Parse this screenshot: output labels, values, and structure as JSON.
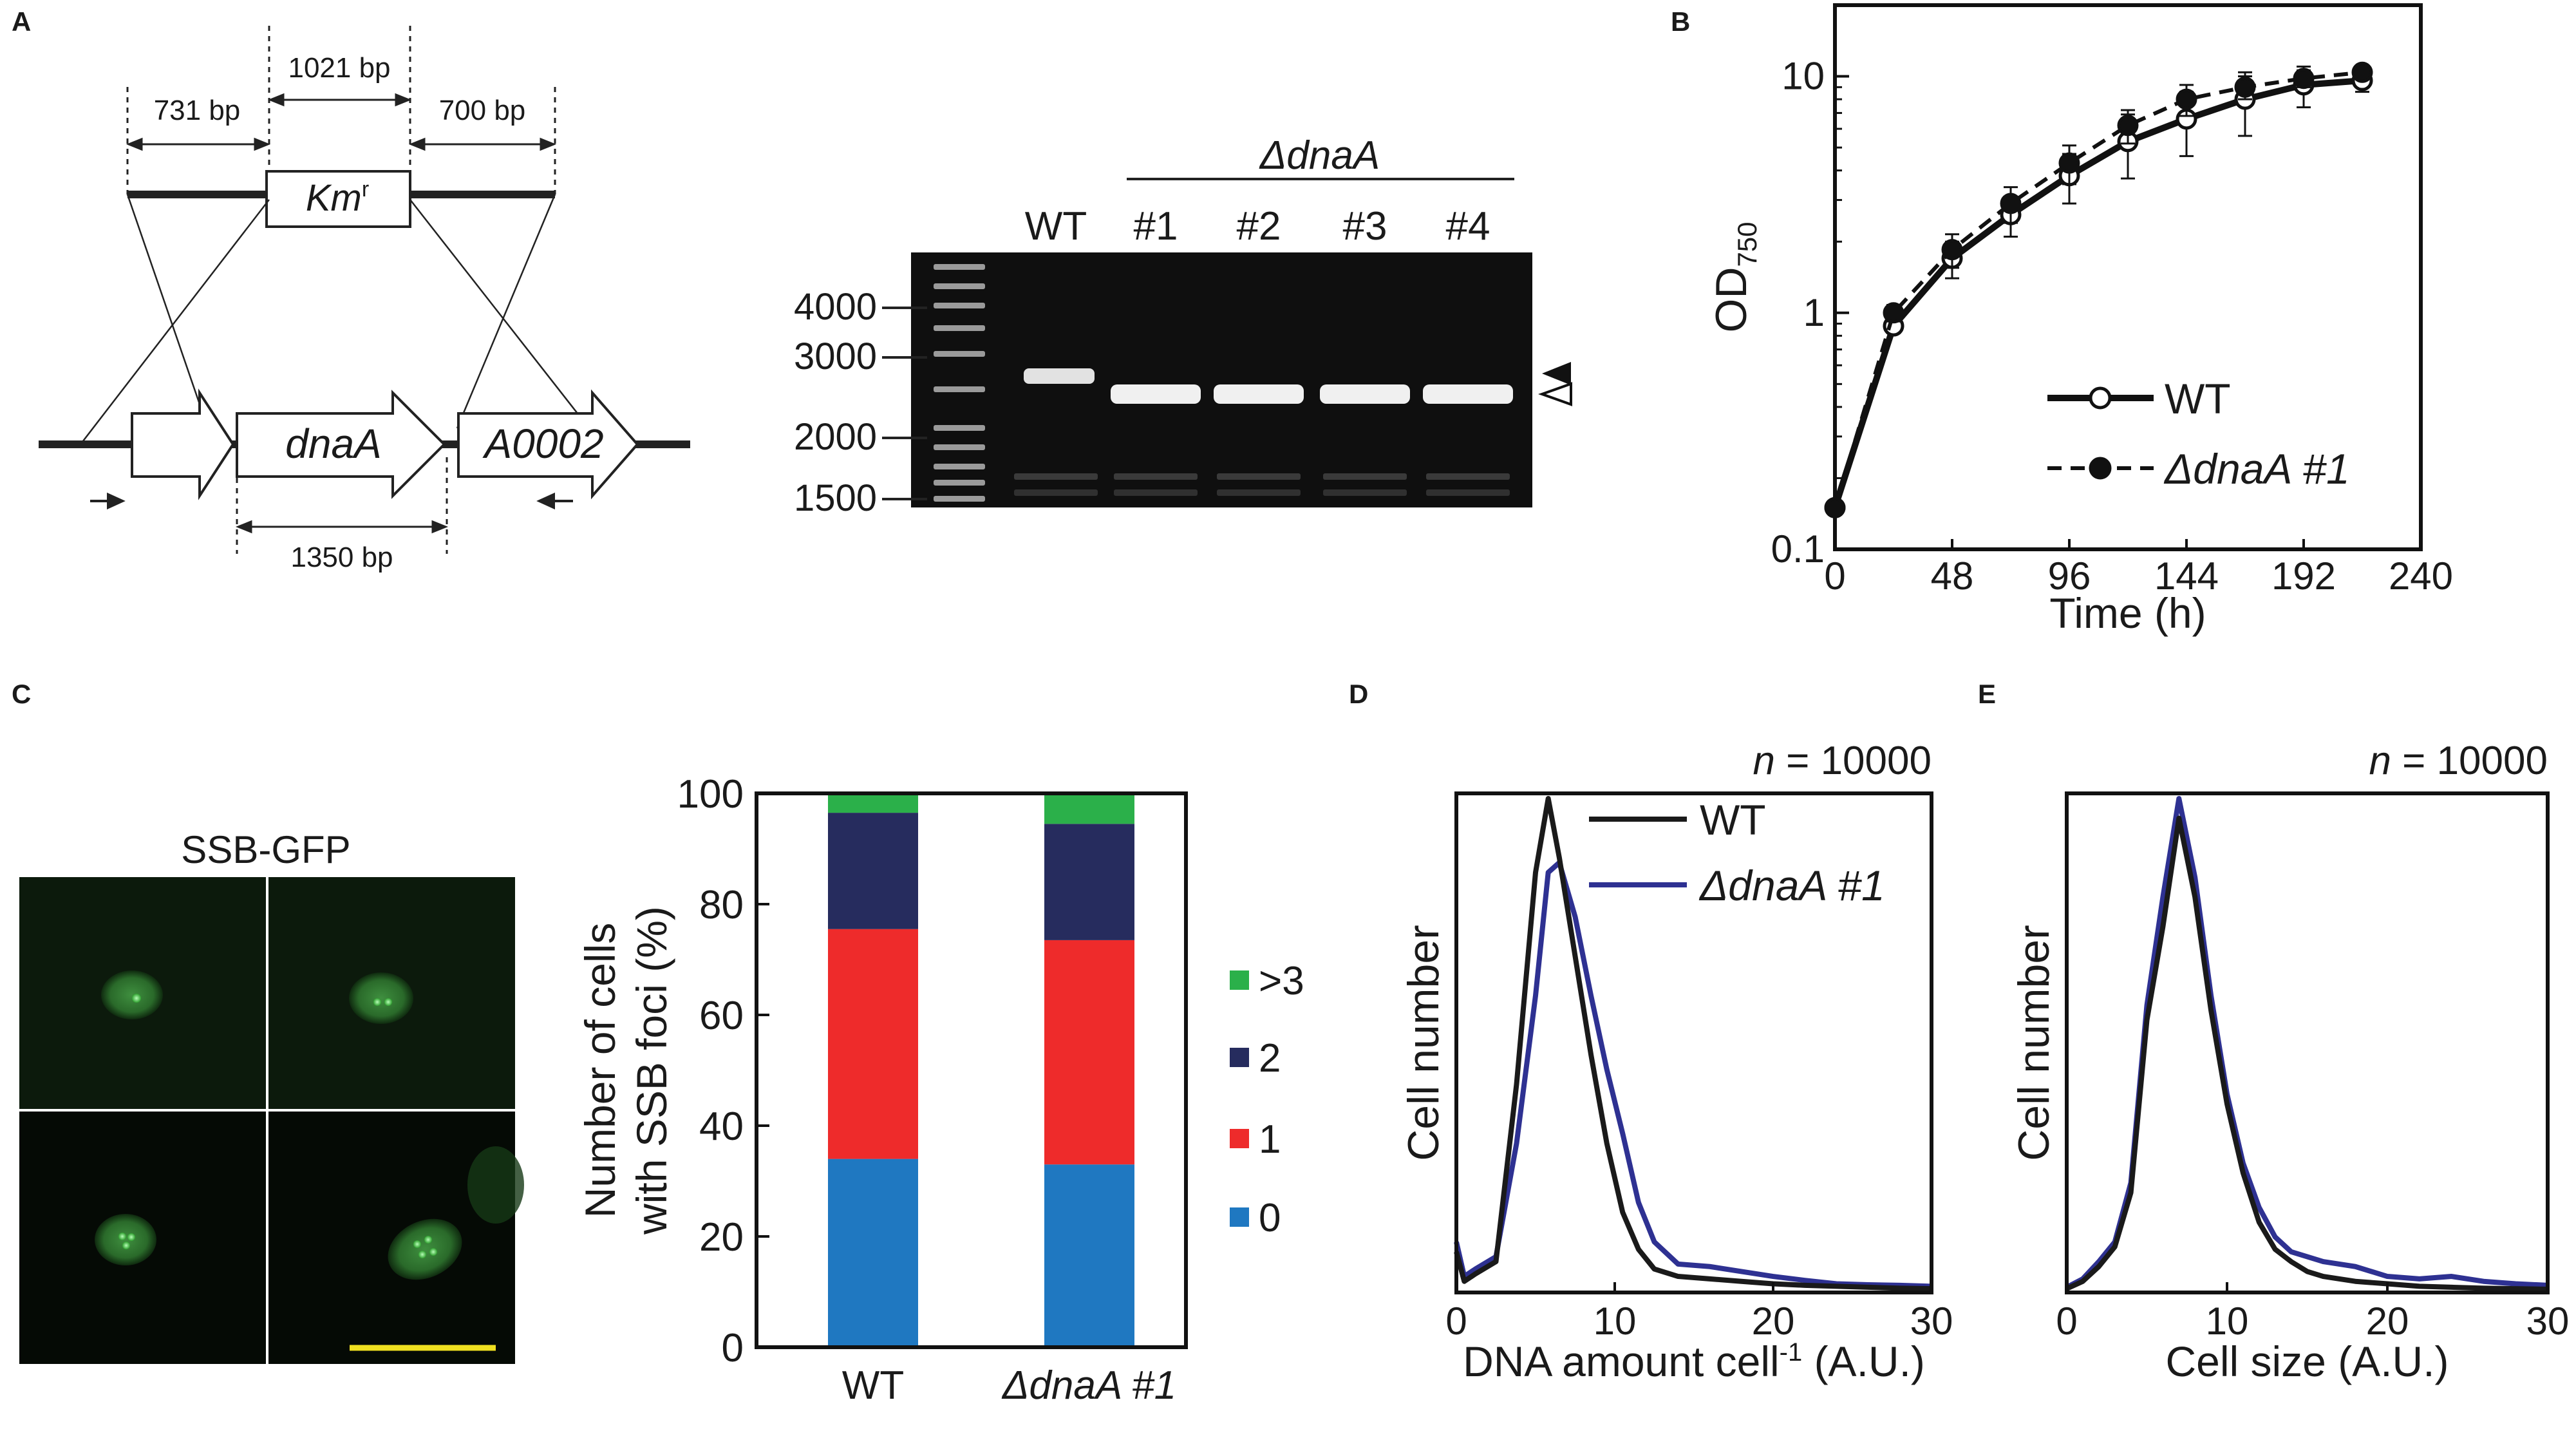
{
  "panels": {
    "A": {
      "label": "A",
      "bp_731": "731 bp",
      "bp_1021": "1021 bp",
      "bp_700": "700 bp",
      "bp_1350": "1350 bp",
      "kmr": "Km",
      "kmr_sup": "r",
      "gene_dnaA": "dnaA",
      "gene_A0002": "A0002",
      "gel_group": "ΔdnaA",
      "lanes": [
        "WT",
        "#1",
        "#2",
        "#3",
        "#4"
      ],
      "markers": [
        "4000",
        "3000",
        "2000",
        "1500"
      ]
    },
    "B": {
      "label": "B"
    },
    "C": {
      "label": "C",
      "micro_title": "SSB-GFP"
    },
    "D": {
      "label": "D"
    },
    "E": {
      "label": "E"
    }
  },
  "chart_data": [
    {
      "id": "B",
      "type": "line",
      "xlabel": "Time (h)",
      "ylabel": "OD",
      "ylabel_sub": "750",
      "yscale": "log",
      "xlim": [
        0,
        240
      ],
      "ylim": [
        0.1,
        20
      ],
      "xticks": [
        "0",
        "48",
        "96",
        "144",
        "192",
        "240"
      ],
      "yticks": [
        "0.1",
        "1",
        "10"
      ],
      "x": [
        0,
        24,
        48,
        72,
        96,
        120,
        144,
        168,
        192,
        216
      ],
      "series": [
        {
          "name": "WT",
          "values": [
            0.15,
            0.88,
            1.7,
            2.6,
            3.8,
            5.3,
            6.6,
            8.0,
            9.2,
            9.6
          ],
          "err": [
            0.01,
            0.06,
            0.3,
            0.5,
            0.9,
            1.6,
            2.0,
            2.4,
            1.8,
            1.0
          ]
        },
        {
          "name": "ΔdnaA #1",
          "values": [
            0.15,
            1.0,
            1.85,
            2.9,
            4.3,
            6.2,
            8.0,
            9.0,
            9.8,
            10.4
          ],
          "err": [
            0.01,
            0.08,
            0.3,
            0.5,
            0.8,
            1.0,
            1.2,
            1.0,
            0.8,
            0.5
          ]
        }
      ]
    },
    {
      "id": "C",
      "type": "bar",
      "stacked": true,
      "ylabel_line1": "Number of cells",
      "ylabel_line2": "with SSB foci (%)",
      "ylim": [
        0,
        100
      ],
      "yticks": [
        "0",
        "20",
        "40",
        "60",
        "80",
        "100"
      ],
      "categories": [
        "WT",
        "ΔdnaA #1"
      ],
      "series": [
        {
          "name": "0",
          "color": "#1f78c1",
          "values": [
            34,
            33
          ]
        },
        {
          "name": "1",
          "color": "#ee2b2b",
          "values": [
            41.5,
            40.5
          ]
        },
        {
          "name": "2",
          "color": "#262c5e",
          "values": [
            21,
            21
          ]
        },
        {
          "name": ">3",
          "color": "#2bb04a",
          "values": [
            3.5,
            5.5
          ]
        }
      ]
    },
    {
      "id": "D",
      "type": "line",
      "n_label": "n",
      "n_value": " = 10000",
      "xlabel": "DNA amount cell",
      "xlabel_sup": "-1",
      "xlabel_tail": " (A.U.)",
      "ylabel": "Cell number",
      "xlim": [
        0,
        30
      ],
      "xticks": [
        "0",
        "10",
        "20",
        "30"
      ],
      "x": [
        0,
        0.5,
        1.2,
        2.5,
        3.8,
        5,
        5.8,
        6.5,
        7.5,
        8.5,
        9.5,
        10.5,
        11.5,
        12.5,
        14,
        16,
        18,
        20,
        22,
        24,
        26,
        28,
        30
      ],
      "series": [
        {
          "name": "WT",
          "color": "#1a1a1a",
          "values": [
            8,
            2,
            3.5,
            6,
            42,
            85,
            100,
            88,
            68,
            48,
            30,
            16,
            8.5,
            4.5,
            3,
            2.5,
            2,
            1.5,
            1.2,
            1.0,
            0.8,
            0.6,
            0.5
          ]
        },
        {
          "name": "ΔdnaA #1",
          "color": "#2e3192",
          "values": [
            10,
            3,
            4.5,
            7,
            30,
            60,
            85,
            87,
            76,
            60,
            45,
            32,
            18,
            10,
            5.5,
            5,
            4,
            3,
            2.2,
            1.5,
            1.3,
            1.2,
            1.0
          ]
        }
      ]
    },
    {
      "id": "E",
      "type": "line",
      "n_label": "n",
      "n_value": " = 10000",
      "xlabel": "Cell size (A.U.)",
      "ylabel": "Cell number",
      "xlim": [
        0,
        30
      ],
      "xticks": [
        "0",
        "10",
        "20",
        "30"
      ],
      "x": [
        0,
        1,
        2,
        3,
        4,
        5,
        6,
        7,
        8,
        9,
        10,
        11,
        12,
        13,
        14,
        15,
        16,
        18,
        20,
        22,
        24,
        26,
        28,
        30
      ],
      "series": [
        {
          "name": "WT",
          "color": "#1a1a1a",
          "values": [
            0.5,
            2,
            5,
            9,
            20,
            55,
            74,
            96,
            80,
            57,
            38,
            24,
            14,
            8.5,
            6,
            4,
            3,
            2,
            1.5,
            1.0,
            0.8,
            0.6,
            0.5,
            0.4
          ]
        },
        {
          "name": "ΔdnaA #1",
          "color": "#2e3192",
          "values": [
            0.8,
            2.5,
            6,
            10,
            22,
            58,
            80,
            100,
            84,
            60,
            40,
            26,
            17,
            11,
            8,
            7,
            6,
            5,
            3,
            2.5,
            3,
            2,
            1.5,
            1.2
          ]
        }
      ]
    }
  ]
}
